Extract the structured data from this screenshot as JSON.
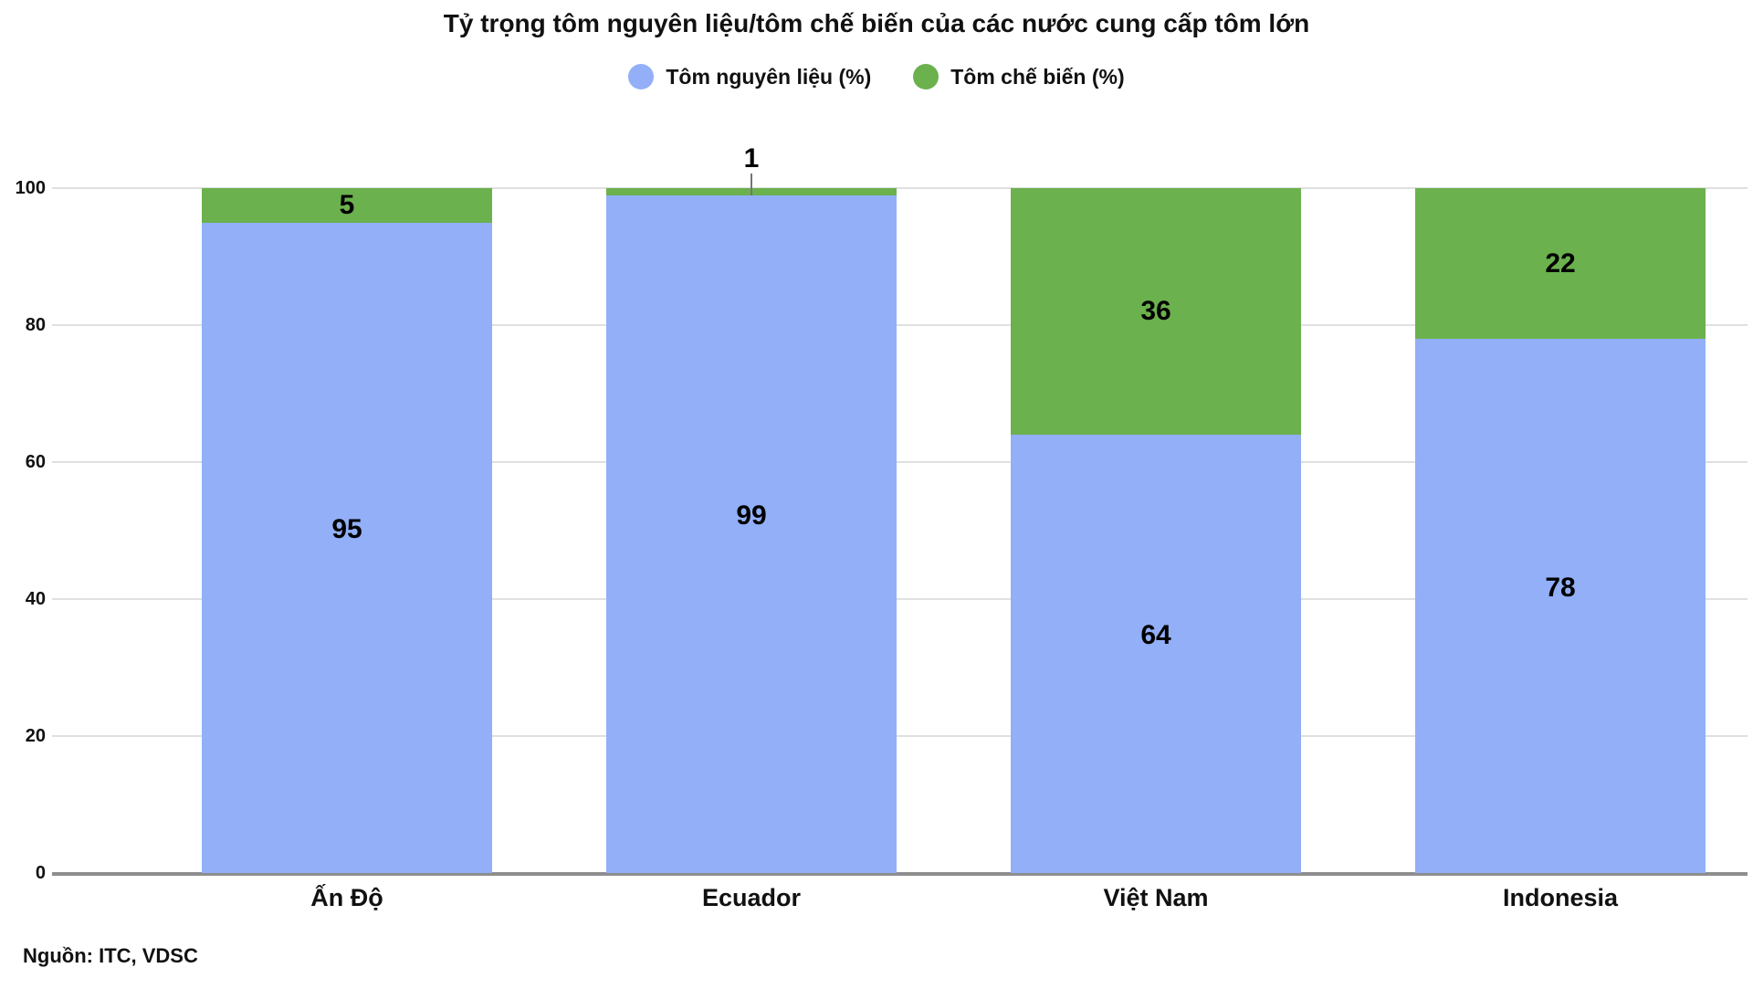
{
  "title": "Tỷ trọng tôm nguyên liệu/tôm chế biến của các nước cung cấp tôm lớn",
  "source": "Nguồn: ITC, VDSC",
  "colors": {
    "raw_blue": "#92AFF7",
    "processed_green": "#6BB14E",
    "gridline": "#E0E0E0",
    "axis": "#8E8E8E"
  },
  "legend": [
    {
      "label": "Tôm nguyên liệu (%)",
      "color": "#92AFF7"
    },
    {
      "label": "Tôm chế biến (%)",
      "color": "#6BB14E"
    }
  ],
  "chart_data": {
    "type": "bar",
    "stacked": true,
    "title": "Tỷ trọng tôm nguyên liệu/tôm chế biến của các nước cung cấp tôm lớn",
    "categories": [
      "Ấn Độ",
      "Ecuador",
      "Việt Nam",
      "Indonesia"
    ],
    "series": [
      {
        "name": "Tôm nguyên liệu (%)",
        "color": "#92AFF7",
        "values": [
          95,
          99,
          64,
          78
        ]
      },
      {
        "name": "Tôm chế biến (%)",
        "color": "#6BB14E",
        "values": [
          5,
          1,
          36,
          22
        ]
      }
    ],
    "xlabel": "",
    "ylabel": "",
    "ylim": [
      0,
      100
    ],
    "yticks": [
      0,
      20,
      40,
      60,
      80,
      100
    ],
    "grid": true,
    "legend_position": "top",
    "annotations": [
      {
        "category": "Ecuador",
        "series": "Tôm chế biến (%)",
        "value": 1,
        "placement": "above-bar-with-leader-line"
      }
    ]
  }
}
